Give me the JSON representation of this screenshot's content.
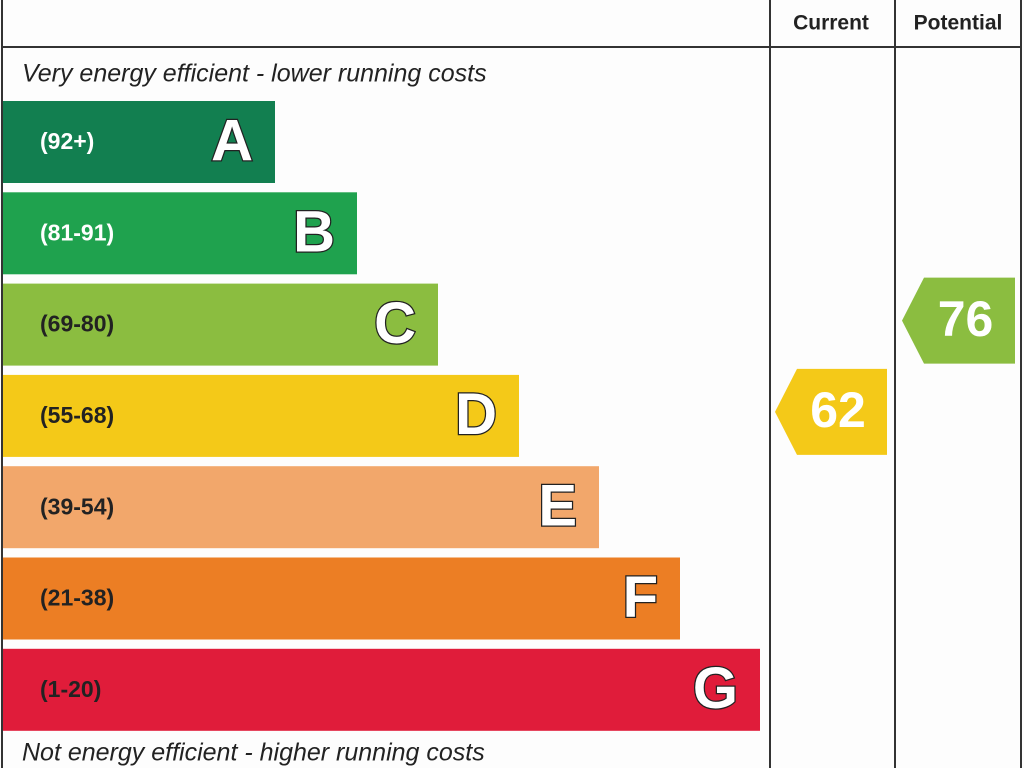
{
  "header": {
    "current": "Current",
    "potential": "Potential"
  },
  "top_note": "Very energy efficient - lower running costs",
  "bottom_note": "Not energy efficient - higher running costs",
  "bands": [
    {
      "range": "(92+)",
      "letter": "A",
      "color": "#127f50"
    },
    {
      "range": "(81-91)",
      "letter": "B",
      "color": "#1fa24e"
    },
    {
      "range": "(69-80)",
      "letter": "C",
      "color": "#8bbd40"
    },
    {
      "range": "(55-68)",
      "letter": "D",
      "color": "#f4c918"
    },
    {
      "range": "(39-54)",
      "letter": "E",
      "color": "#f2a76b"
    },
    {
      "range": "(21-38)",
      "letter": "F",
      "color": "#ec7e24"
    },
    {
      "range": "(1-20)",
      "letter": "G",
      "color": "#e01c3a"
    }
  ],
  "current": {
    "value": 62,
    "color": "#f4c918"
  },
  "potential": {
    "value": 76,
    "color": "#8bbd40"
  }
}
